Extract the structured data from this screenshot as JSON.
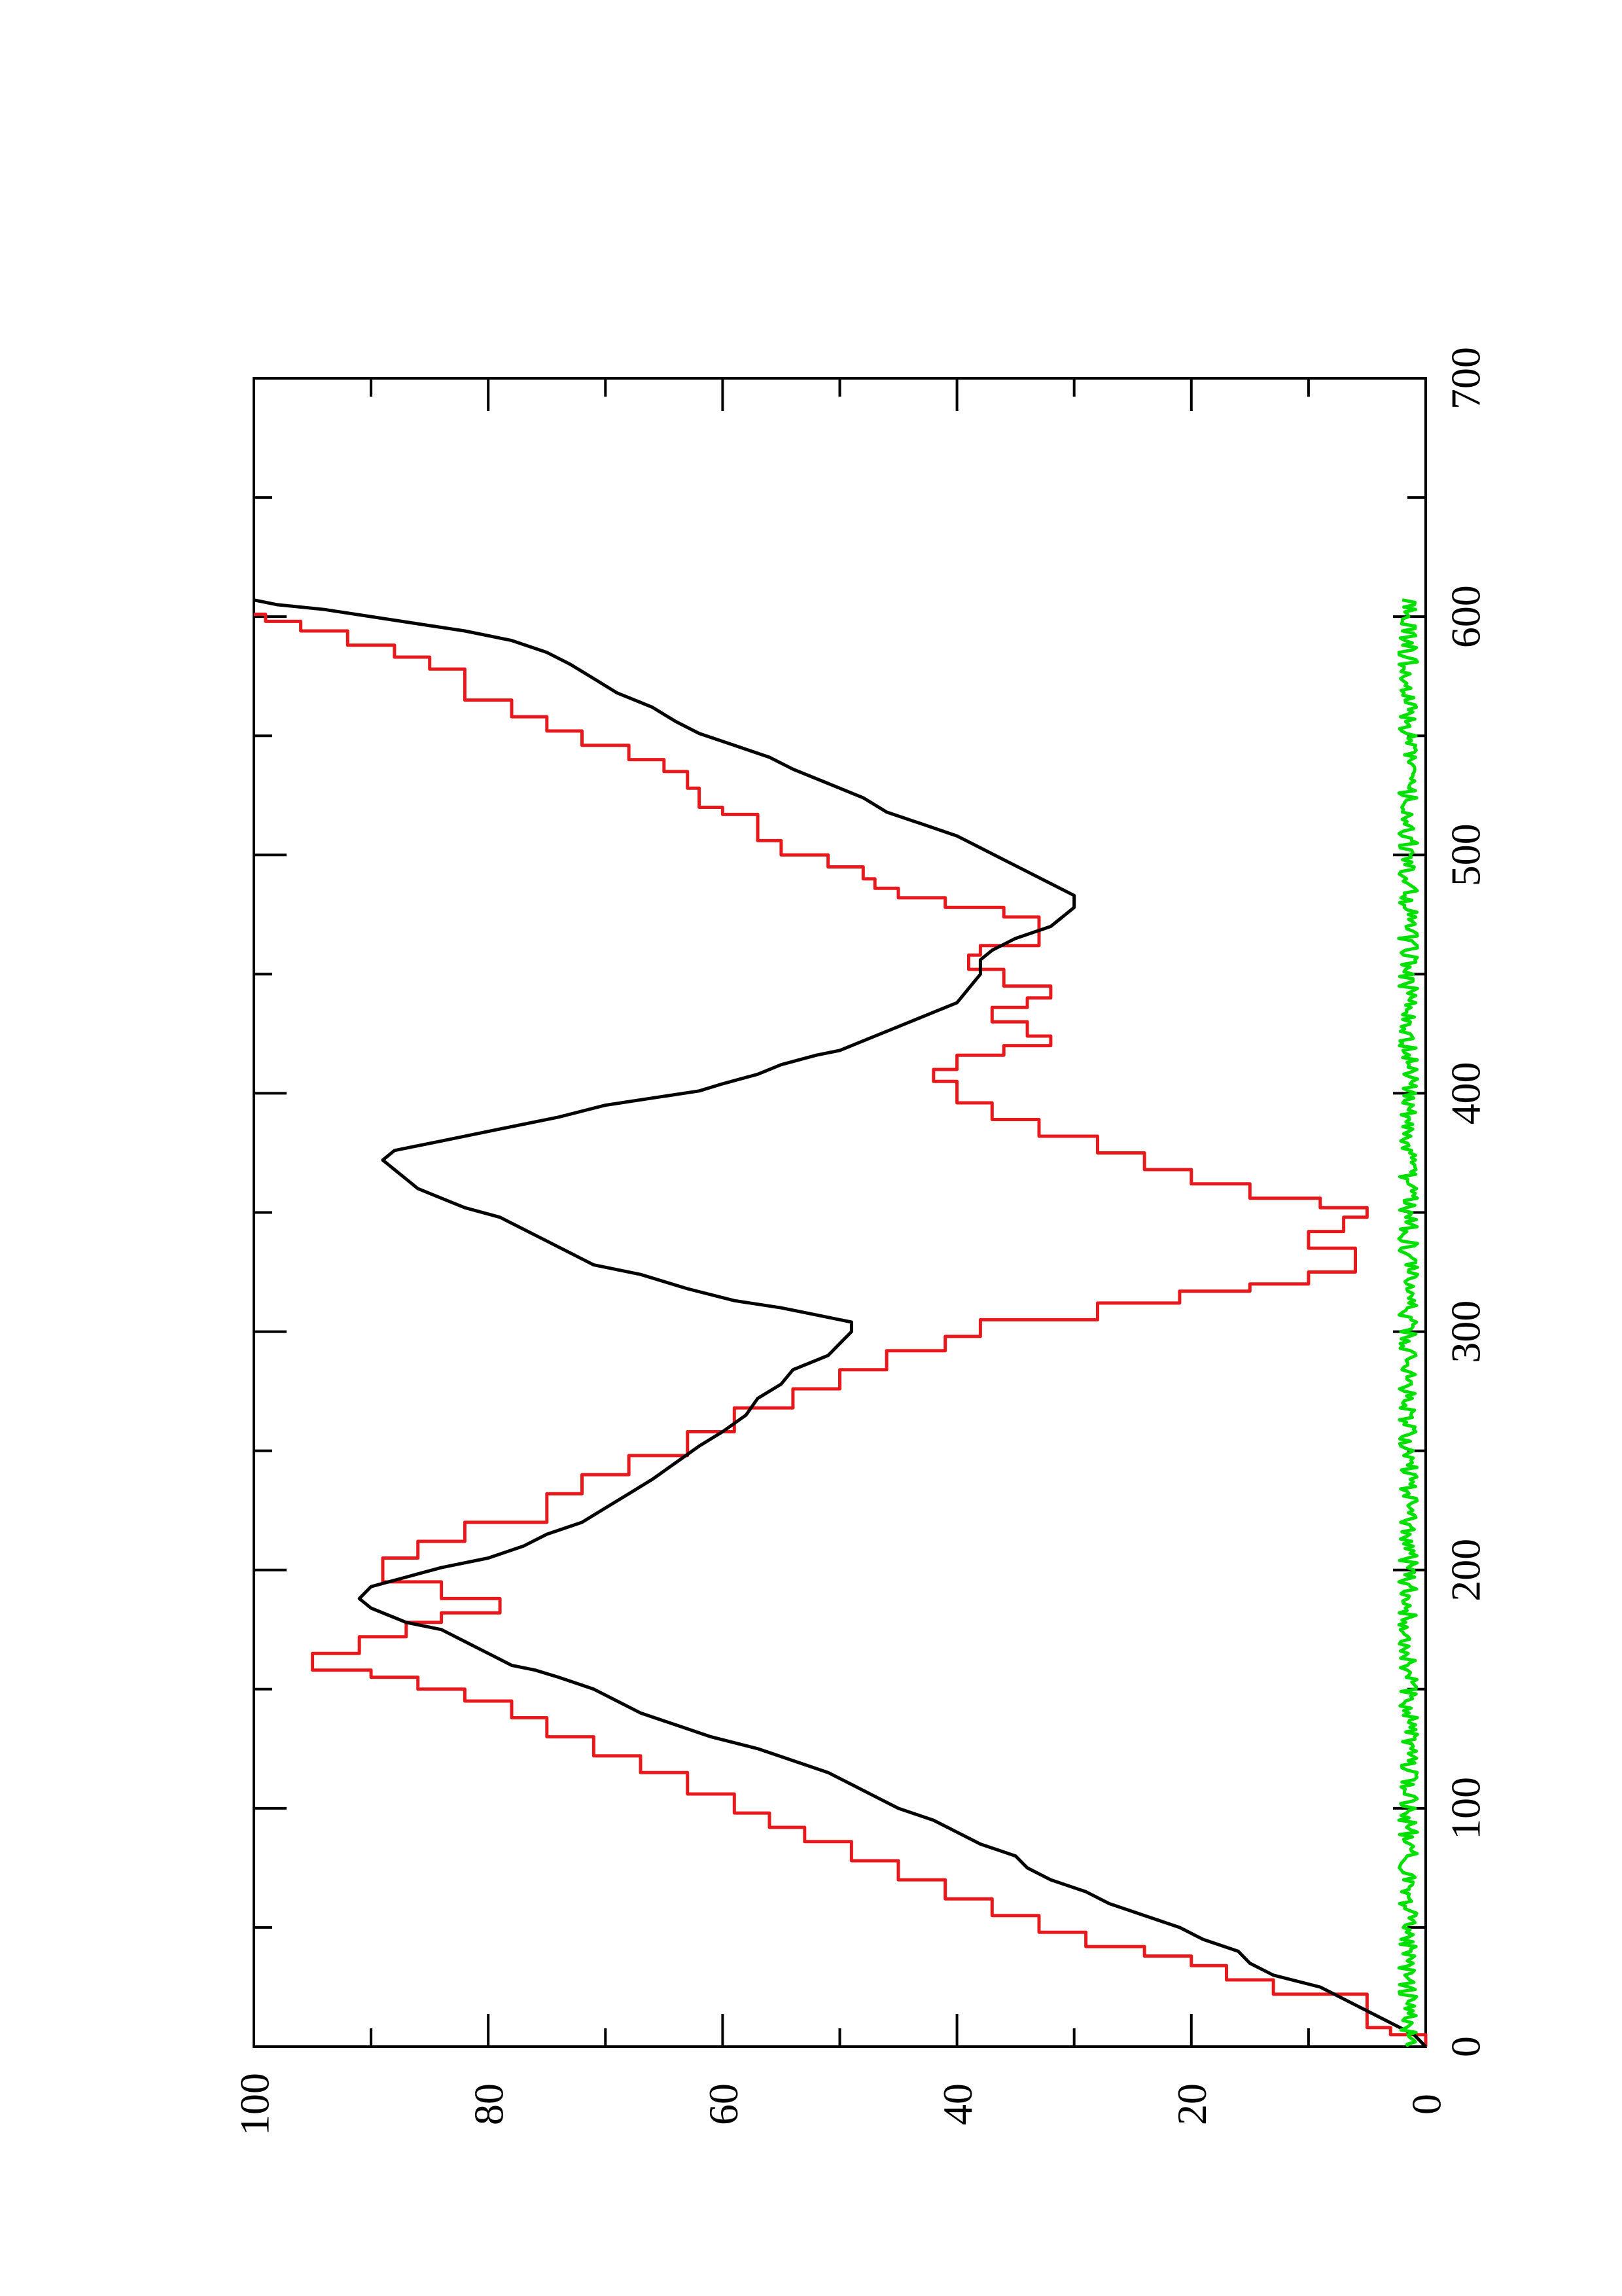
{
  "chart_data": {
    "type": "line",
    "orientation": "rotated-90-ccw",
    "title": "",
    "xlabel": "",
    "ylabel": "",
    "xlim": [
      0,
      700
    ],
    "ylim": [
      0,
      100
    ],
    "x_ticks": [
      0,
      100,
      200,
      300,
      400,
      500,
      600,
      700
    ],
    "x_minor_ticks": [
      50,
      150,
      250,
      350,
      450,
      550,
      650
    ],
    "y_ticks": [
      0,
      20,
      40,
      60,
      80,
      100
    ],
    "y_minor_ticks": [
      10,
      30,
      50,
      70,
      90
    ],
    "x_tick_labels": [
      "0",
      "100",
      "200",
      "300",
      "400",
      "500",
      "600",
      "700"
    ],
    "y_tick_labels": [
      "0",
      "20",
      "40",
      "60",
      "80",
      "100"
    ],
    "grid": false,
    "legend": "none",
    "series": [
      {
        "color": "#e8191c",
        "style": "step",
        "points": [
          [
            0,
            0
          ],
          [
            5,
            3
          ],
          [
            8,
            5
          ],
          [
            18,
            5
          ],
          [
            22,
            13
          ],
          [
            28,
            17
          ],
          [
            34,
            20
          ],
          [
            38,
            24
          ],
          [
            42,
            29
          ],
          [
            48,
            33
          ],
          [
            55,
            37
          ],
          [
            62,
            41
          ],
          [
            70,
            45
          ],
          [
            78,
            49
          ],
          [
            86,
            53
          ],
          [
            92,
            56
          ],
          [
            98,
            59
          ],
          [
            106,
            63
          ],
          [
            115,
            67
          ],
          [
            122,
            71
          ],
          [
            130,
            75
          ],
          [
            138,
            78
          ],
          [
            145,
            82
          ],
          [
            150,
            86
          ],
          [
            155,
            90
          ],
          [
            158,
            95
          ],
          [
            165,
            91
          ],
          [
            172,
            87
          ],
          [
            178,
            84
          ],
          [
            182,
            79
          ],
          [
            188,
            84
          ],
          [
            195,
            89
          ],
          [
            205,
            86
          ],
          [
            212,
            82
          ],
          [
            220,
            75
          ],
          [
            232,
            72
          ],
          [
            240,
            68
          ],
          [
            248,
            63
          ],
          [
            258,
            59
          ],
          [
            268,
            54
          ],
          [
            276,
            50
          ],
          [
            284,
            46
          ],
          [
            292,
            41
          ],
          [
            298,
            38
          ],
          [
            305,
            28
          ],
          [
            312,
            21
          ],
          [
            317,
            15
          ],
          [
            320,
            10
          ],
          [
            325,
            6
          ],
          [
            330,
            6
          ],
          [
            335,
            10
          ],
          [
            342,
            7
          ],
          [
            348,
            5
          ],
          [
            352,
            9
          ],
          [
            356,
            15
          ],
          [
            362,
            20
          ],
          [
            368,
            24
          ],
          [
            375,
            28
          ],
          [
            382,
            33
          ],
          [
            389,
            37
          ],
          [
            396,
            40
          ],
          [
            405,
            42
          ],
          [
            410,
            40
          ],
          [
            416,
            36
          ],
          [
            420,
            32
          ],
          [
            424,
            34
          ],
          [
            430,
            37
          ],
          [
            436,
            34
          ],
          [
            440,
            32
          ],
          [
            445,
            36
          ],
          [
            452,
            39
          ],
          [
            458,
            38
          ],
          [
            462,
            33
          ],
          [
            470,
            33
          ],
          [
            474,
            36
          ],
          [
            478,
            41
          ],
          [
            482,
            45
          ],
          [
            486,
            47
          ],
          [
            490,
            48
          ],
          [
            495,
            51
          ],
          [
            500,
            55
          ],
          [
            506,
            57
          ],
          [
            512,
            57
          ],
          [
            517,
            60
          ],
          [
            520,
            62
          ],
          [
            528,
            63
          ],
          [
            535,
            65
          ],
          [
            540,
            68
          ],
          [
            546,
            72
          ],
          [
            552,
            75
          ],
          [
            558,
            78
          ],
          [
            565,
            82
          ],
          [
            572,
            82
          ],
          [
            578,
            85
          ],
          [
            583,
            88
          ],
          [
            588,
            92
          ],
          [
            594,
            96
          ],
          [
            598,
            99
          ],
          [
            601,
            100
          ]
        ]
      },
      {
        "color": "#000000",
        "style": "line",
        "points": [
          [
            0,
            0
          ],
          [
            5,
            1
          ],
          [
            10,
            3
          ],
          [
            15,
            5
          ],
          [
            20,
            7
          ],
          [
            25,
            9
          ],
          [
            30,
            13
          ],
          [
            35,
            15
          ],
          [
            40,
            16
          ],
          [
            45,
            19
          ],
          [
            50,
            21
          ],
          [
            55,
            24
          ],
          [
            60,
            27
          ],
          [
            65,
            29
          ],
          [
            70,
            32
          ],
          [
            75,
            34
          ],
          [
            80,
            35
          ],
          [
            85,
            38
          ],
          [
            90,
            40
          ],
          [
            95,
            42
          ],
          [
            100,
            45
          ],
          [
            105,
            47
          ],
          [
            110,
            49
          ],
          [
            115,
            51
          ],
          [
            120,
            54
          ],
          [
            125,
            57
          ],
          [
            130,
            61
          ],
          [
            135,
            64
          ],
          [
            140,
            67
          ],
          [
            145,
            69
          ],
          [
            150,
            71
          ],
          [
            155,
            74
          ],
          [
            158,
            76
          ],
          [
            160,
            78
          ],
          [
            165,
            80
          ],
          [
            170,
            82
          ],
          [
            175,
            84
          ],
          [
            178,
            87
          ],
          [
            180,
            88
          ],
          [
            184,
            90
          ],
          [
            188,
            91
          ],
          [
            193,
            90
          ],
          [
            197,
            87
          ],
          [
            201,
            84
          ],
          [
            205,
            80
          ],
          [
            210,
            77
          ],
          [
            215,
            75
          ],
          [
            220,
            72
          ],
          [
            226,
            70
          ],
          [
            232,
            68
          ],
          [
            238,
            66
          ],
          [
            245,
            64
          ],
          [
            252,
            62
          ],
          [
            258,
            60
          ],
          [
            265,
            58
          ],
          [
            272,
            57
          ],
          [
            278,
            55
          ],
          [
            284,
            54
          ],
          [
            290,
            51
          ],
          [
            295,
            50
          ],
          [
            300,
            49
          ],
          [
            304,
            49
          ],
          [
            307,
            52
          ],
          [
            310,
            55
          ],
          [
            313,
            59
          ],
          [
            318,
            63
          ],
          [
            324,
            67
          ],
          [
            328,
            71
          ],
          [
            333,
            73
          ],
          [
            338,
            75
          ],
          [
            343,
            77
          ],
          [
            348,
            79
          ],
          [
            352,
            82
          ],
          [
            356,
            84
          ],
          [
            360,
            86
          ],
          [
            364,
            87
          ],
          [
            368,
            88
          ],
          [
            372,
            89
          ],
          [
            376,
            88
          ],
          [
            380,
            84
          ],
          [
            385,
            79
          ],
          [
            390,
            74
          ],
          [
            395,
            70
          ],
          [
            398,
            66
          ],
          [
            401,
            62
          ],
          [
            404,
            60
          ],
          [
            408,
            57
          ],
          [
            412,
            55
          ],
          [
            416,
            52
          ],
          [
            418,
            50
          ],
          [
            422,
            48
          ],
          [
            426,
            46
          ],
          [
            430,
            44
          ],
          [
            434,
            42
          ],
          [
            438,
            40
          ],
          [
            444,
            39
          ],
          [
            450,
            38
          ],
          [
            456,
            38
          ],
          [
            460,
            37
          ],
          [
            465,
            35
          ],
          [
            470,
            32
          ],
          [
            474,
            31
          ],
          [
            478,
            30
          ],
          [
            483,
            30
          ],
          [
            488,
            32
          ],
          [
            493,
            34
          ],
          [
            498,
            36
          ],
          [
            503,
            38
          ],
          [
            508,
            40
          ],
          [
            513,
            43
          ],
          [
            518,
            46
          ],
          [
            524,
            48
          ],
          [
            530,
            51
          ],
          [
            536,
            54
          ],
          [
            541,
            56
          ],
          [
            546,
            59
          ],
          [
            551,
            62
          ],
          [
            556,
            64
          ],
          [
            562,
            66
          ],
          [
            568,
            69
          ],
          [
            574,
            71
          ],
          [
            580,
            73
          ],
          [
            585,
            75
          ],
          [
            590,
            78
          ],
          [
            594,
            82
          ],
          [
            597,
            86
          ],
          [
            600,
            90
          ],
          [
            603,
            94
          ],
          [
            605,
            98
          ],
          [
            607,
            100
          ]
        ]
      },
      {
        "color": "#00e000",
        "style": "noisy",
        "mean": 1.5,
        "amplitude": 0.8,
        "x_range": [
          0,
          607
        ]
      }
    ]
  }
}
